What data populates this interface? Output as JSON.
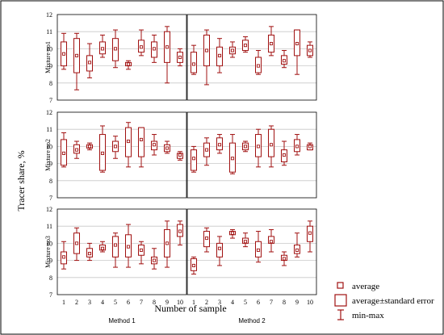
{
  "chart_data": {
    "type": "box",
    "ylabel": "Tracer share, %",
    "xlabel": "Number of sample",
    "ylim": [
      7,
      12
    ],
    "yticks": [
      "7",
      "8",
      "9",
      "10",
      "11",
      "12"
    ],
    "grid": true,
    "categories": [
      "1",
      "2",
      "3",
      "4",
      "5",
      "6",
      "7",
      "8",
      "9",
      "10"
    ],
    "columns": [
      "Method 1",
      "Method 2"
    ],
    "rows": [
      "Mixture no1",
      "Mixture no2",
      "Mixture no3"
    ],
    "legend": {
      "position": "bottom-right",
      "items": [
        "average",
        "average±standard error",
        "min-max"
      ]
    },
    "colors": {
      "series": "#a01010",
      "grid": "#c8c8c8",
      "frame": "#000000"
    },
    "panels": [
      {
        "row": 0,
        "col": 0,
        "mean": [
          9.7,
          9.6,
          9.2,
          10.0,
          10.0,
          9.1,
          10.1,
          10.0,
          10.1,
          9.5
        ],
        "lo": [
          9.0,
          8.6,
          8.7,
          9.7,
          9.3,
          9.0,
          9.8,
          9.5,
          9.2,
          9.2
        ],
        "hi": [
          10.4,
          10.6,
          9.6,
          10.4,
          10.6,
          9.2,
          10.5,
          10.4,
          11.0,
          9.8
        ],
        "min": [
          8.8,
          7.6,
          8.3,
          9.5,
          8.9,
          8.8,
          9.6,
          9.2,
          8.0,
          9.0
        ],
        "max": [
          10.9,
          10.9,
          10.3,
          10.8,
          11.1,
          9.3,
          11.1,
          10.8,
          11.3,
          10.0
        ]
      },
      {
        "row": 0,
        "col": 1,
        "mean": [
          9.1,
          9.9,
          9.6,
          9.9,
          10.2,
          9.0,
          10.3,
          9.3,
          10.3,
          9.9
        ],
        "lo": [
          8.6,
          9.0,
          9.0,
          9.7,
          9.9,
          8.6,
          9.8,
          9.1,
          9.6,
          9.6
        ],
        "hi": [
          9.8,
          10.8,
          10.1,
          10.1,
          10.5,
          9.5,
          10.8,
          9.6,
          11.1,
          10.2
        ],
        "min": [
          8.5,
          7.9,
          8.6,
          9.5,
          9.8,
          8.5,
          9.6,
          8.9,
          8.5,
          9.5
        ],
        "max": [
          10.2,
          11.1,
          10.6,
          10.4,
          10.7,
          9.9,
          11.3,
          9.9,
          11.1,
          10.4
        ]
      },
      {
        "row": 1,
        "col": 0,
        "mean": [
          9.6,
          9.8,
          10.0,
          9.6,
          10.0,
          10.3,
          10.4,
          10.1,
          9.9,
          9.5
        ],
        "lo": [
          8.9,
          9.6,
          9.9,
          8.6,
          9.7,
          9.4,
          9.4,
          9.8,
          9.7,
          9.3
        ],
        "hi": [
          10.4,
          10.1,
          10.1,
          10.7,
          10.3,
          11.1,
          11.1,
          10.3,
          10.1,
          9.6
        ],
        "min": [
          8.8,
          9.3,
          9.8,
          8.5,
          9.3,
          8.8,
          8.8,
          9.5,
          9.6,
          9.2
        ],
        "max": [
          10.8,
          10.3,
          10.2,
          11.2,
          10.6,
          11.4,
          11.1,
          10.7,
          10.3,
          9.7
        ]
      },
      {
        "row": 1,
        "col": 1,
        "mean": [
          9.3,
          9.8,
          10.1,
          9.3,
          10.0,
          10.0,
          10.1,
          9.5,
          10.0,
          10.0
        ],
        "lo": [
          8.6,
          9.4,
          9.8,
          8.5,
          9.8,
          9.4,
          9.4,
          9.1,
          9.7,
          9.8
        ],
        "hi": [
          9.8,
          10.2,
          10.5,
          10.2,
          10.2,
          10.7,
          11.0,
          9.8,
          10.4,
          10.1
        ],
        "min": [
          8.5,
          8.9,
          9.6,
          8.4,
          9.7,
          8.8,
          8.8,
          8.9,
          9.5,
          9.8
        ],
        "max": [
          10.0,
          10.5,
          10.7,
          10.7,
          10.3,
          11.0,
          11.2,
          10.3,
          10.7,
          10.2
        ]
      },
      {
        "row": 2,
        "col": 0,
        "mean": [
          9.2,
          10.0,
          9.4,
          9.7,
          9.9,
          9.8,
          9.6,
          9.0,
          10.0,
          10.7
        ],
        "lo": [
          8.8,
          9.4,
          9.2,
          9.6,
          9.2,
          9.2,
          9.3,
          8.8,
          9.2,
          10.4
        ],
        "hi": [
          9.5,
          10.6,
          9.7,
          9.9,
          10.4,
          10.5,
          9.9,
          9.2,
          10.8,
          11.1
        ],
        "min": [
          8.5,
          9.0,
          9.0,
          9.5,
          8.6,
          8.6,
          8.8,
          8.5,
          8.6,
          9.9
        ],
        "max": [
          10.1,
          10.9,
          10.0,
          10.1,
          10.6,
          11.1,
          10.1,
          9.7,
          11.3,
          11.3
        ]
      },
      {
        "row": 2,
        "col": 1,
        "mean": [
          8.7,
          10.3,
          9.7,
          10.6,
          10.1,
          9.6,
          10.1,
          9.1,
          9.6,
          10.6
        ],
        "lo": [
          8.4,
          9.8,
          9.2,
          10.5,
          10.0,
          9.2,
          10.0,
          9.0,
          9.4,
          10.1
        ],
        "hi": [
          9.1,
          10.7,
          10.0,
          10.7,
          10.3,
          10.1,
          10.4,
          9.3,
          9.9,
          11.0
        ],
        "min": [
          8.2,
          9.5,
          8.7,
          10.3,
          9.8,
          8.9,
          9.5,
          8.7,
          9.2,
          9.5
        ],
        "max": [
          9.2,
          10.9,
          10.4,
          10.8,
          10.6,
          10.7,
          10.8,
          9.5,
          10.6,
          11.3
        ]
      }
    ]
  }
}
